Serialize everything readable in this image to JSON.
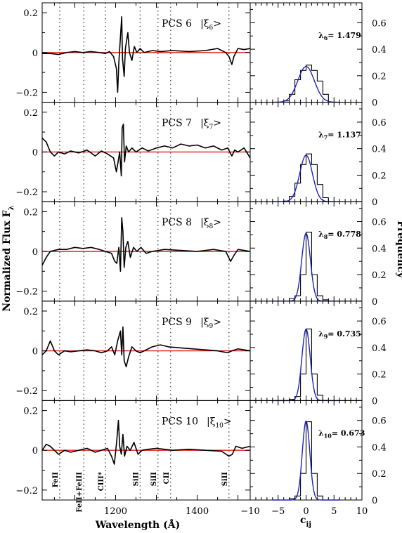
{
  "chart_data": {
    "type": "line",
    "left_panels": {
      "xlabel": "Wavelength (Å)",
      "ylabel": "Normalized Flux F",
      "ylabel_sub": "λ",
      "xlim": [
        1020,
        1530
      ],
      "ylim": [
        -0.25,
        0.25
      ],
      "xticks": [
        "1200",
        "1400"
      ],
      "yticks": [
        "0.2",
        "0",
        "−0.2"
      ],
      "line_markers": [
        {
          "wavelength": 1063,
          "label": "FeII"
        },
        {
          "wavelength": 1122,
          "label": "FeII+FeIII"
        },
        {
          "wavelength": 1175,
          "label": "CIII*"
        },
        {
          "wavelength": 1260,
          "label": "SiII"
        },
        {
          "wavelength": 1304,
          "label": "SiII"
        },
        {
          "wavelength": 1335,
          "label": "CII"
        },
        {
          "wavelength": 1478,
          "label": "SiII"
        }
      ]
    },
    "right_panels": {
      "xlabel": "c",
      "xlabel_sub": "ij",
      "ylabel": "Frequency",
      "xlim": [
        -10,
        10
      ],
      "ylim": [
        0,
        0.75
      ],
      "xticks": [
        "−10",
        "−5",
        "0",
        "5",
        "10"
      ],
      "yticks": [
        "0",
        "0.2",
        "0.4",
        "0.6"
      ],
      "hist_bins": [
        -4,
        -3,
        -2,
        -1,
        0,
        1,
        2,
        3,
        4
      ]
    },
    "panels": [
      {
        "name": "PCS6",
        "label": "PCS 6",
        "ket_sub": "6",
        "lambda_sub": "6",
        "lambda_value": "1.479",
        "sigma": 1.48,
        "hist_values": [
          0.01,
          0.06,
          0.17,
          0.24,
          0.28,
          0.24,
          0.16,
          0.06
        ],
        "spectrum": [
          [
            1020,
            -0.005
          ],
          [
            1040,
            -0.005
          ],
          [
            1060,
            -0.01
          ],
          [
            1080,
            0.0
          ],
          [
            1100,
            0.005
          ],
          [
            1120,
            0.0
          ],
          [
            1140,
            0.005
          ],
          [
            1160,
            0.0
          ],
          [
            1175,
            -0.005
          ],
          [
            1185,
            0.005
          ],
          [
            1195,
            -0.02
          ],
          [
            1202,
            -0.08
          ],
          [
            1205,
            -0.2
          ],
          [
            1208,
            -0.05
          ],
          [
            1212,
            0.08
          ],
          [
            1215,
            0.18
          ],
          [
            1217,
            -0.03
          ],
          [
            1221,
            -0.12
          ],
          [
            1224,
            0.02
          ],
          [
            1230,
            0.1
          ],
          [
            1234,
            0.0
          ],
          [
            1240,
            -0.04
          ],
          [
            1246,
            0.03
          ],
          [
            1252,
            0.0
          ],
          [
            1260,
            0.02
          ],
          [
            1270,
            0.0
          ],
          [
            1290,
            0.01
          ],
          [
            1310,
            0.005
          ],
          [
            1340,
            0.01
          ],
          [
            1380,
            0.005
          ],
          [
            1420,
            0.01
          ],
          [
            1450,
            0.02
          ],
          [
            1470,
            0.0
          ],
          [
            1478,
            -0.02
          ],
          [
            1485,
            -0.06
          ],
          [
            1490,
            -0.02
          ],
          [
            1500,
            0.02
          ],
          [
            1515,
            0.015
          ],
          [
            1530,
            0.02
          ]
        ]
      },
      {
        "name": "PCS7",
        "label": "PCS 7",
        "ket_sub": "7",
        "lambda_sub": "7",
        "lambda_value": "1.137",
        "sigma": 1.14,
        "hist_values": [
          0.005,
          0.04,
          0.14,
          0.28,
          0.36,
          0.28,
          0.13,
          0.03
        ],
        "spectrum": [
          [
            1020,
            0.07
          ],
          [
            1030,
            0.05
          ],
          [
            1040,
            0.0
          ],
          [
            1050,
            -0.02
          ],
          [
            1060,
            0.0
          ],
          [
            1075,
            -0.01
          ],
          [
            1090,
            0.005
          ],
          [
            1110,
            -0.005
          ],
          [
            1130,
            0.01
          ],
          [
            1150,
            -0.02
          ],
          [
            1165,
            0.005
          ],
          [
            1180,
            -0.01
          ],
          [
            1195,
            -0.03
          ],
          [
            1202,
            -0.1
          ],
          [
            1206,
            -0.05
          ],
          [
            1210,
            0.0
          ],
          [
            1214,
            -0.12
          ],
          [
            1216,
            0.12
          ],
          [
            1219,
            0.14
          ],
          [
            1222,
            -0.05
          ],
          [
            1226,
            0.03
          ],
          [
            1232,
            0.0
          ],
          [
            1240,
            0.02
          ],
          [
            1250,
            0.0
          ],
          [
            1265,
            0.02
          ],
          [
            1280,
            0.005
          ],
          [
            1300,
            0.02
          ],
          [
            1320,
            0.03
          ],
          [
            1340,
            0.02
          ],
          [
            1360,
            0.04
          ],
          [
            1380,
            0.03
          ],
          [
            1400,
            0.035
          ],
          [
            1420,
            0.02
          ],
          [
            1440,
            0.03
          ],
          [
            1460,
            0.01
          ],
          [
            1475,
            0.02
          ],
          [
            1485,
            -0.02
          ],
          [
            1492,
            0.01
          ],
          [
            1500,
            0.0
          ],
          [
            1515,
            0.02
          ],
          [
            1530,
            -0.03
          ]
        ]
      },
      {
        "name": "PCS8",
        "label": "PCS 8",
        "ket_sub": "8",
        "lambda_sub": "8",
        "lambda_value": "0.778",
        "sigma": 0.78,
        "hist_values": [
          0.0,
          0.02,
          0.04,
          0.2,
          0.52,
          0.2,
          0.04,
          0.01
        ],
        "spectrum": [
          [
            1020,
            -0.07
          ],
          [
            1030,
            -0.03
          ],
          [
            1040,
            0.0
          ],
          [
            1060,
            0.01
          ],
          [
            1080,
            0.01
          ],
          [
            1100,
            0.02
          ],
          [
            1120,
            0.015
          ],
          [
            1140,
            0.02
          ],
          [
            1160,
            0.01
          ],
          [
            1175,
            0.0
          ],
          [
            1190,
            -0.01
          ],
          [
            1198,
            -0.05
          ],
          [
            1203,
            -0.06
          ],
          [
            1208,
            0.02
          ],
          [
            1212,
            -0.1
          ],
          [
            1215,
            0.17
          ],
          [
            1218,
            0.1
          ],
          [
            1221,
            -0.08
          ],
          [
            1225,
            0.02
          ],
          [
            1230,
            0.05
          ],
          [
            1236,
            -0.03
          ],
          [
            1244,
            0.02
          ],
          [
            1252,
            0.0
          ],
          [
            1262,
            0.02
          ],
          [
            1275,
            -0.01
          ],
          [
            1290,
            0.0
          ],
          [
            1320,
            0.01
          ],
          [
            1360,
            0.005
          ],
          [
            1400,
            0.0
          ],
          [
            1440,
            0.01
          ],
          [
            1470,
            0.0
          ],
          [
            1482,
            -0.05
          ],
          [
            1490,
            -0.02
          ],
          [
            1500,
            0.01
          ],
          [
            1515,
            0.005
          ],
          [
            1530,
            0.0
          ]
        ]
      },
      {
        "name": "PCS9",
        "label": "PCS 9",
        "ket_sub": "9",
        "lambda_sub": "9",
        "lambda_value": "0.735",
        "sigma": 0.74,
        "hist_values": [
          0.0,
          0.01,
          0.03,
          0.2,
          0.54,
          0.2,
          0.04,
          0.0
        ],
        "spectrum": [
          [
            1020,
            -0.02
          ],
          [
            1030,
            0.0
          ],
          [
            1040,
            0.05
          ],
          [
            1050,
            0.0
          ],
          [
            1060,
            -0.02
          ],
          [
            1075,
            0.0
          ],
          [
            1090,
            -0.005
          ],
          [
            1110,
            0.0
          ],
          [
            1130,
            0.005
          ],
          [
            1150,
            0.0
          ],
          [
            1165,
            -0.01
          ],
          [
            1180,
            0.0
          ],
          [
            1190,
            0.02
          ],
          [
            1198,
            -0.02
          ],
          [
            1205,
            0.05
          ],
          [
            1212,
            0.1
          ],
          [
            1215,
            -0.02
          ],
          [
            1218,
            0.12
          ],
          [
            1221,
            -0.05
          ],
          [
            1226,
            -0.08
          ],
          [
            1232,
            -0.03
          ],
          [
            1240,
            0.02
          ],
          [
            1250,
            0.0
          ],
          [
            1260,
            -0.01
          ],
          [
            1270,
            0.0
          ],
          [
            1290,
            0.02
          ],
          [
            1310,
            0.03
          ],
          [
            1330,
            0.02
          ],
          [
            1360,
            0.015
          ],
          [
            1390,
            0.01
          ],
          [
            1420,
            0.005
          ],
          [
            1450,
            0.0
          ],
          [
            1475,
            -0.01
          ],
          [
            1485,
            0.0
          ],
          [
            1500,
            0.01
          ],
          [
            1530,
            0.0
          ]
        ]
      },
      {
        "name": "PCS10",
        "label": "PCS 10",
        "ket_sub": "10",
        "lambda_sub": "10",
        "lambda_value": "0.673",
        "sigma": 0.67,
        "hist_values": [
          0.0,
          0.01,
          0.03,
          0.2,
          0.59,
          0.2,
          0.03,
          0.0
        ],
        "spectrum": [
          [
            1020,
            0.0
          ],
          [
            1030,
            0.03
          ],
          [
            1040,
            0.02
          ],
          [
            1050,
            0.0
          ],
          [
            1060,
            -0.02
          ],
          [
            1075,
            0.0
          ],
          [
            1090,
            -0.01
          ],
          [
            1110,
            0.0
          ],
          [
            1130,
            0.01
          ],
          [
            1150,
            -0.01
          ],
          [
            1165,
            0.0
          ],
          [
            1180,
            0.01
          ],
          [
            1190,
            -0.03
          ],
          [
            1197,
            -0.07
          ],
          [
            1203,
            0.05
          ],
          [
            1207,
            0.15
          ],
          [
            1210,
            0.02
          ],
          [
            1214,
            -0.02
          ],
          [
            1218,
            0.08
          ],
          [
            1222,
            -0.03
          ],
          [
            1228,
            0.02
          ],
          [
            1236,
            0.0
          ],
          [
            1245,
            0.04
          ],
          [
            1255,
            -0.02
          ],
          [
            1265,
            0.0
          ],
          [
            1280,
            0.005
          ],
          [
            1300,
            0.01
          ],
          [
            1340,
            0.0
          ],
          [
            1380,
            0.005
          ],
          [
            1420,
            0.0
          ],
          [
            1460,
            -0.005
          ],
          [
            1478,
            -0.03
          ],
          [
            1486,
            -0.02
          ],
          [
            1495,
            0.02
          ],
          [
            1510,
            0.01
          ],
          [
            1530,
            0.02
          ]
        ]
      }
    ]
  }
}
